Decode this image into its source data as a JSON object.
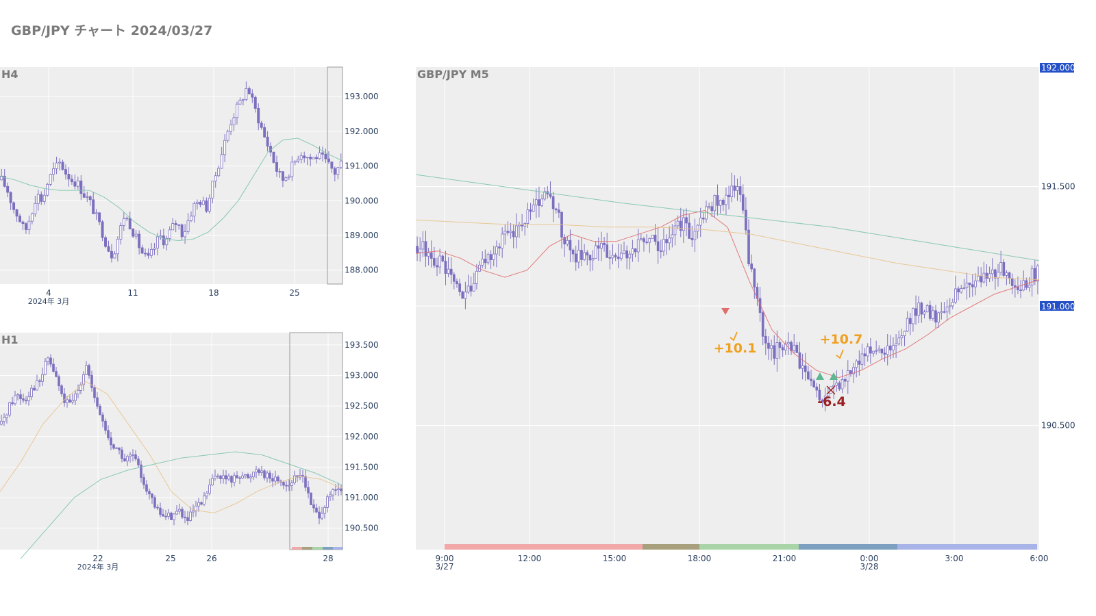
{
  "page": {
    "title": "GBP/JPY チャート 2024/03/27"
  },
  "colors": {
    "plot_bg": "#eeeeee",
    "grid": "#ffffff",
    "candle": "#7b6fbf",
    "ma_fast": "#e06c6c",
    "ma_mid": "#e8c28a",
    "ma_slow": "#7cc4a8",
    "price_tag_bg": "#2450c8",
    "win": "#f0a020",
    "loss": "#9b2020",
    "session_1": "#f0a8a8",
    "session_2": "#a8a07c",
    "session_3": "#a8d4a8",
    "session_4": "#7ea0c0",
    "session_5": "#a8b4e8"
  },
  "chart_data": [
    {
      "id": "h4",
      "type": "candlestick",
      "title": "H4",
      "y_ticks": [
        "188.000",
        "189.000",
        "190.000",
        "191.000",
        "192.000",
        "193.000"
      ],
      "ylim": [
        187.6,
        193.85
      ],
      "x_ticks": [
        "4",
        "11",
        "18",
        "25"
      ],
      "x_sublabel": "2024年 3月",
      "grid": true,
      "series_close_approx": [
        190.6,
        190.3,
        189.8,
        189.5,
        189.1,
        189.6,
        190.2,
        190.0,
        190.6,
        190.9,
        191.1,
        190.8,
        190.6,
        190.5,
        190.2,
        190.0,
        189.6,
        189.2,
        188.7,
        188.4,
        189.0,
        189.6,
        189.3,
        188.9,
        188.5,
        188.3,
        188.6,
        189.0,
        188.8,
        189.2,
        189.4,
        189.0,
        189.5,
        189.9,
        190.0,
        189.8,
        190.4,
        191.0,
        191.6,
        192.2,
        192.6,
        192.9,
        193.3,
        192.8,
        192.3,
        191.8,
        191.4,
        190.9,
        190.6,
        190.8,
        191.1,
        191.4,
        191.3,
        191.2,
        191.3,
        191.2,
        191.0,
        190.8,
        191.1
      ],
      "ma_series": [
        {
          "values": [
            190.7,
            190.6,
            190.45,
            190.35,
            190.3,
            190.3,
            190.3,
            190.1,
            189.8,
            189.4,
            189.1,
            188.9,
            188.85,
            188.9,
            189.1,
            189.5,
            190.0,
            190.7,
            191.4,
            191.75,
            191.8,
            191.6,
            191.35,
            191.15
          ]
        }
      ]
    },
    {
      "id": "h1",
      "type": "candlestick",
      "title": "H1",
      "y_ticks": [
        "190.500",
        "191.000",
        "191.500",
        "192.000",
        "192.500",
        "193.000",
        "193.500"
      ],
      "ylim": [
        190.15,
        193.7
      ],
      "x_ticks": [
        "22",
        "25",
        "26",
        "28"
      ],
      "x_sublabel": "2024年 3月",
      "grid": true,
      "series_close_approx": [
        192.2,
        192.5,
        192.7,
        192.6,
        192.8,
        192.9,
        193.3,
        193.0,
        192.6,
        192.5,
        192.8,
        193.2,
        192.6,
        192.3,
        191.9,
        191.8,
        191.6,
        191.7,
        191.4,
        191.1,
        190.8,
        190.7,
        190.7,
        190.8,
        190.6,
        190.8,
        190.9,
        191.2,
        191.4,
        191.3,
        191.3,
        191.4,
        191.3,
        191.5,
        191.4,
        191.3,
        191.3,
        191.2,
        191.3,
        191.4,
        190.9,
        190.7,
        190.9,
        191.1,
        191.1
      ],
      "ma_series": [
        {
          "values": [
            191.1,
            191.6,
            192.2,
            192.6,
            192.9,
            192.7,
            192.2,
            191.7,
            191.1,
            190.8,
            190.75,
            190.9,
            191.1,
            191.25,
            191.35,
            191.3,
            191.15
          ]
        },
        {
          "values": [
            190.0,
            190.5,
            191.0,
            191.3,
            191.45,
            191.55,
            191.65,
            191.7,
            191.75,
            191.7,
            191.55,
            191.4,
            191.2
          ]
        }
      ]
    },
    {
      "id": "m5",
      "type": "candlestick",
      "title": "GBP/JPY M5",
      "y_ticks": [
        "190.500",
        "191.000",
        "191.500"
      ],
      "y_top_label": "192.000",
      "current_price_label": "191.000",
      "ylim": [
        189.98,
        192.0
      ],
      "x_ticks": [
        "9:00",
        "12:00",
        "15:00",
        "18:00",
        "21:00",
        "0:00",
        "3:00",
        "6:00"
      ],
      "x_sublabels": [
        "3/27",
        "",
        "",
        "",
        "",
        "3/28",
        "",
        ""
      ],
      "grid": true,
      "series_close_approx": [
        191.25,
        191.22,
        191.18,
        191.1,
        191.05,
        191.1,
        191.2,
        191.25,
        191.3,
        191.35,
        191.4,
        191.45,
        191.42,
        191.25,
        191.2,
        191.2,
        191.25,
        191.2,
        191.2,
        191.25,
        191.3,
        191.25,
        191.3,
        191.35,
        191.3,
        191.4,
        191.45,
        191.45,
        191.5,
        191.15,
        190.9,
        190.8,
        190.85,
        190.8,
        190.7,
        190.6,
        190.65,
        190.7,
        190.75,
        190.8,
        190.85,
        190.8,
        190.85,
        190.95,
        191.0,
        190.95,
        191.0,
        191.05,
        191.1,
        191.1,
        191.15,
        191.15,
        191.1,
        191.1,
        191.15
      ],
      "ma_series": [
        {
          "name": "",
          "values": [
            191.22,
            191.23,
            191.2,
            191.15,
            191.12,
            191.15,
            191.25,
            191.3,
            191.27,
            191.27,
            191.3,
            191.33,
            191.38,
            191.4,
            191.33,
            191.1,
            190.9,
            190.8,
            190.73,
            190.7,
            190.73,
            190.78,
            190.82,
            190.88,
            190.95,
            191.0,
            191.05,
            191.08,
            191.11
          ]
        },
        {
          "name": "",
          "values": [
            191.36,
            191.35,
            191.34,
            191.34,
            191.33,
            191.33,
            191.32,
            191.3,
            191.26,
            191.22,
            191.18,
            191.15,
            191.12,
            191.11
          ]
        },
        {
          "name": "",
          "values": [
            191.55,
            191.49,
            191.43,
            191.38,
            191.33,
            191.26,
            191.19
          ]
        }
      ],
      "trades": [
        {
          "label": "+10.1",
          "result": "win"
        },
        {
          "label": "+10.7",
          "result": "win"
        },
        {
          "label": "-6.4",
          "result": "loss"
        }
      ],
      "sessions": [
        "session_1",
        "session_2",
        "session_3",
        "session_4",
        "session_5"
      ]
    }
  ]
}
